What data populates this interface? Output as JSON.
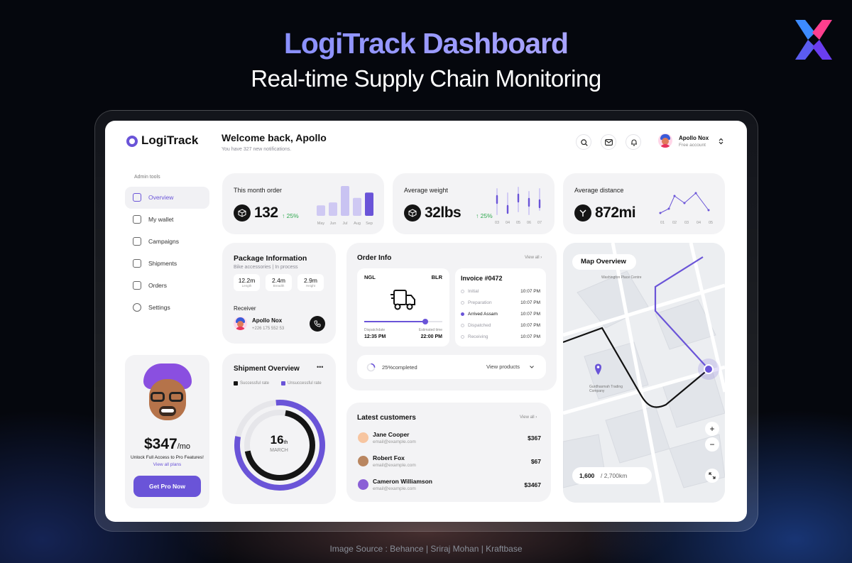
{
  "banner": {
    "title": "LogiTrack Dashboard",
    "subtitle": "Real-time Supply Chain Monitoring",
    "source": "Image Source : Behance | Sriraj Mohan | Kraftbase"
  },
  "app": {
    "logo": "LogiTrack",
    "welcome": "Welcome back, Apollo",
    "notifications": "You have 327 new notifications.",
    "user": {
      "name": "Apollo Nox",
      "plan": "Free account"
    },
    "icons": [
      "search-icon",
      "mail-icon",
      "bell-icon",
      "chevron-updown-icon"
    ]
  },
  "sidebar": {
    "section": "Admin tools",
    "items": [
      {
        "label": "Overview",
        "icon": "overview-icon",
        "active": true
      },
      {
        "label": "My wallet",
        "icon": "wallet-icon"
      },
      {
        "label": "Campaigns",
        "icon": "campaigns-icon"
      },
      {
        "label": "Shipments",
        "icon": "truck-icon"
      },
      {
        "label": "Orders",
        "icon": "bag-icon"
      },
      {
        "label": "Settings",
        "icon": "gear-icon"
      }
    ],
    "promo": {
      "price": "$347",
      "period": "/mo",
      "text": "Unlock Full Access to Pro Features!",
      "link": "View all plans",
      "button": "Get Pro Now"
    }
  },
  "stats": {
    "orders": {
      "title": "This month order",
      "value": "132",
      "change": "↑ 25%",
      "months": [
        "May",
        "Jun",
        "Jul",
        "Aug",
        "Sep"
      ],
      "bar_levels": [
        0.35,
        0.45,
        1.0,
        0.6,
        0.78
      ]
    },
    "weight": {
      "title": "Average weight",
      "value": "32lbs",
      "change": "↑ 25%",
      "labels": [
        "03",
        "04",
        "05",
        "06",
        "07"
      ]
    },
    "distance": {
      "title": "Average distance",
      "value": "872mi",
      "labels": [
        "01",
        "02",
        "03",
        "04",
        "05"
      ]
    }
  },
  "package": {
    "title": "Package Information",
    "subtitle": "Bike accessories | In process",
    "stats": [
      {
        "value": "12.2m",
        "label": "Length"
      },
      {
        "value": "2.4m",
        "label": "Breadth"
      },
      {
        "value": "2.9m",
        "label": "Height"
      }
    ],
    "receiver_label": "Receiver",
    "receiver_name": "Apollo Nox",
    "receiver_phone": "+226 175 552 53"
  },
  "order_info": {
    "title": "Order Info",
    "view_all": "View all ›",
    "from": "NGL",
    "to": "BLR",
    "depart_label": "Dispatchdate",
    "depart_time": "12:35 PM",
    "arrive_label": "Estimated time",
    "arrive_time": "22:00 PM",
    "route_progress": 0.78,
    "invoice": "Invoice #0472",
    "timeline": [
      {
        "step": "Initial",
        "time": "10:07 PM"
      },
      {
        "step": "Preparation",
        "time": "10:07 PM"
      },
      {
        "step": "Arrived Assam",
        "time": "10:07 PM",
        "current": true
      },
      {
        "step": "Dispatched",
        "time": "10:07 PM"
      },
      {
        "step": "Receiving",
        "time": "10:07 PM"
      }
    ],
    "completed": "25%completed",
    "view_products": "View products"
  },
  "shipment": {
    "title": "Shipment Overview",
    "menu": "•••",
    "legend_success": "Successful rate",
    "legend_fail": "Unsuccessful rate",
    "day": "16",
    "day_suffix": "th",
    "month": "MARCH"
  },
  "customers": {
    "title": "Latest customers",
    "view_all": "View all ›",
    "rows": [
      {
        "name": "Jane Cooper",
        "email": "email@example.com",
        "amount": "$367"
      },
      {
        "name": "Robert Fox",
        "email": "email@example.com",
        "amount": "$67"
      },
      {
        "name": "Cameron Williamson",
        "email": "email@example.com",
        "amount": "$3467"
      }
    ]
  },
  "map": {
    "title": "Map Overview",
    "place_1": "Washington Place Centre",
    "place_2": "Gurdhasmah Trading Company",
    "distance": "1,600",
    "total": "/ 2,700km",
    "zoom_in": "+",
    "zoom_out": "−"
  },
  "colors": {
    "accent": "#6a54d8",
    "dark": "#151515",
    "green": "#2fa84f"
  }
}
